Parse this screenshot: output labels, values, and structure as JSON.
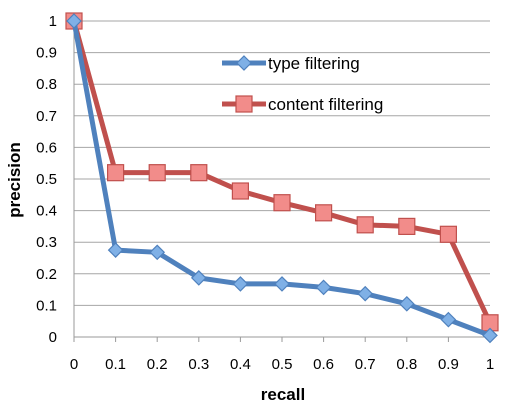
{
  "chart_data": {
    "type": "line",
    "title": "",
    "xlabel": "recall",
    "ylabel": "precision",
    "x": [
      0,
      0.1,
      0.2,
      0.3,
      0.4,
      0.5,
      0.6,
      0.7,
      0.8,
      0.9,
      1
    ],
    "x_tick_labels": [
      "0",
      "0.1",
      "0.2",
      "0.3",
      "0.4",
      "0.5",
      "0.6",
      "0.7",
      "0.8",
      "0.9",
      "1"
    ],
    "y_tick_labels": [
      "0",
      "0.1",
      "0.2",
      "0.3",
      "0.4",
      "0.5",
      "0.6",
      "0.7",
      "0.8",
      "0.9",
      "1"
    ],
    "xlim": [
      0,
      1
    ],
    "ylim": [
      0,
      1
    ],
    "grid": true,
    "legend_position": "top-right",
    "series": [
      {
        "name": "type filtering",
        "color": "#4f81bd",
        "marker": "diamond",
        "values": [
          1.0,
          0.275,
          0.268,
          0.187,
          0.168,
          0.168,
          0.157,
          0.137,
          0.105,
          0.055,
          0.005
        ]
      },
      {
        "name": "content filtering",
        "color": "#c0504d",
        "marker": "square",
        "values": [
          1.0,
          0.52,
          0.52,
          0.52,
          0.462,
          0.425,
          0.393,
          0.355,
          0.35,
          0.325,
          0.045
        ]
      }
    ]
  }
}
